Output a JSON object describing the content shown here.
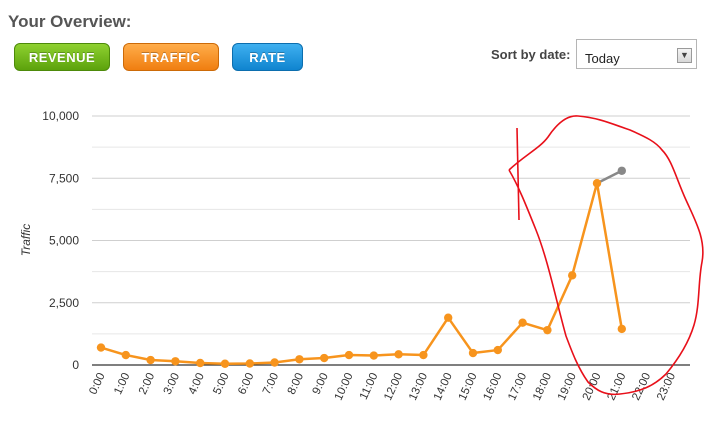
{
  "header": {
    "title": "Your Overview:"
  },
  "tabs": [
    {
      "label": "REVENUE",
      "color": "#6ab820"
    },
    {
      "label": "TRAFFIC",
      "color": "#f58b1f"
    },
    {
      "label": "RATE",
      "color": "#1a92dd"
    }
  ],
  "sort": {
    "label": "Sort by date:",
    "selected": "Today"
  },
  "chart_data": {
    "type": "line",
    "ylabel": "Traffic",
    "ylim": [
      0,
      10000
    ],
    "yticks": [
      "0",
      "2,500",
      "5,000",
      "7,500",
      "10,000"
    ],
    "ytick_values": [
      0,
      2500,
      5000,
      7500,
      10000
    ],
    "categories": [
      "0:00",
      "1:00",
      "2:00",
      "3:00",
      "4:00",
      "5:00",
      "6:00",
      "7:00",
      "8:00",
      "9:00",
      "10:00",
      "11:00",
      "12:00",
      "13:00",
      "14:00",
      "15:00",
      "16:00",
      "17:00",
      "18:00",
      "19:00",
      "20:00",
      "21:00",
      "22:00",
      "23:00"
    ],
    "series": [
      {
        "color": "#f7941d",
        "values": [
          700,
          400,
          200,
          150,
          80,
          50,
          60,
          100,
          230,
          280,
          400,
          380,
          430,
          400,
          1900,
          480,
          600,
          1700,
          1400,
          3600,
          7300,
          1450,
          null,
          null
        ]
      },
      {
        "color": "#888888",
        "values": [
          null,
          null,
          null,
          null,
          null,
          null,
          null,
          null,
          null,
          null,
          null,
          null,
          null,
          null,
          null,
          null,
          null,
          null,
          null,
          null,
          7300,
          7800,
          null,
          null
        ]
      }
    ],
    "annotation_color": "#e8101a"
  }
}
